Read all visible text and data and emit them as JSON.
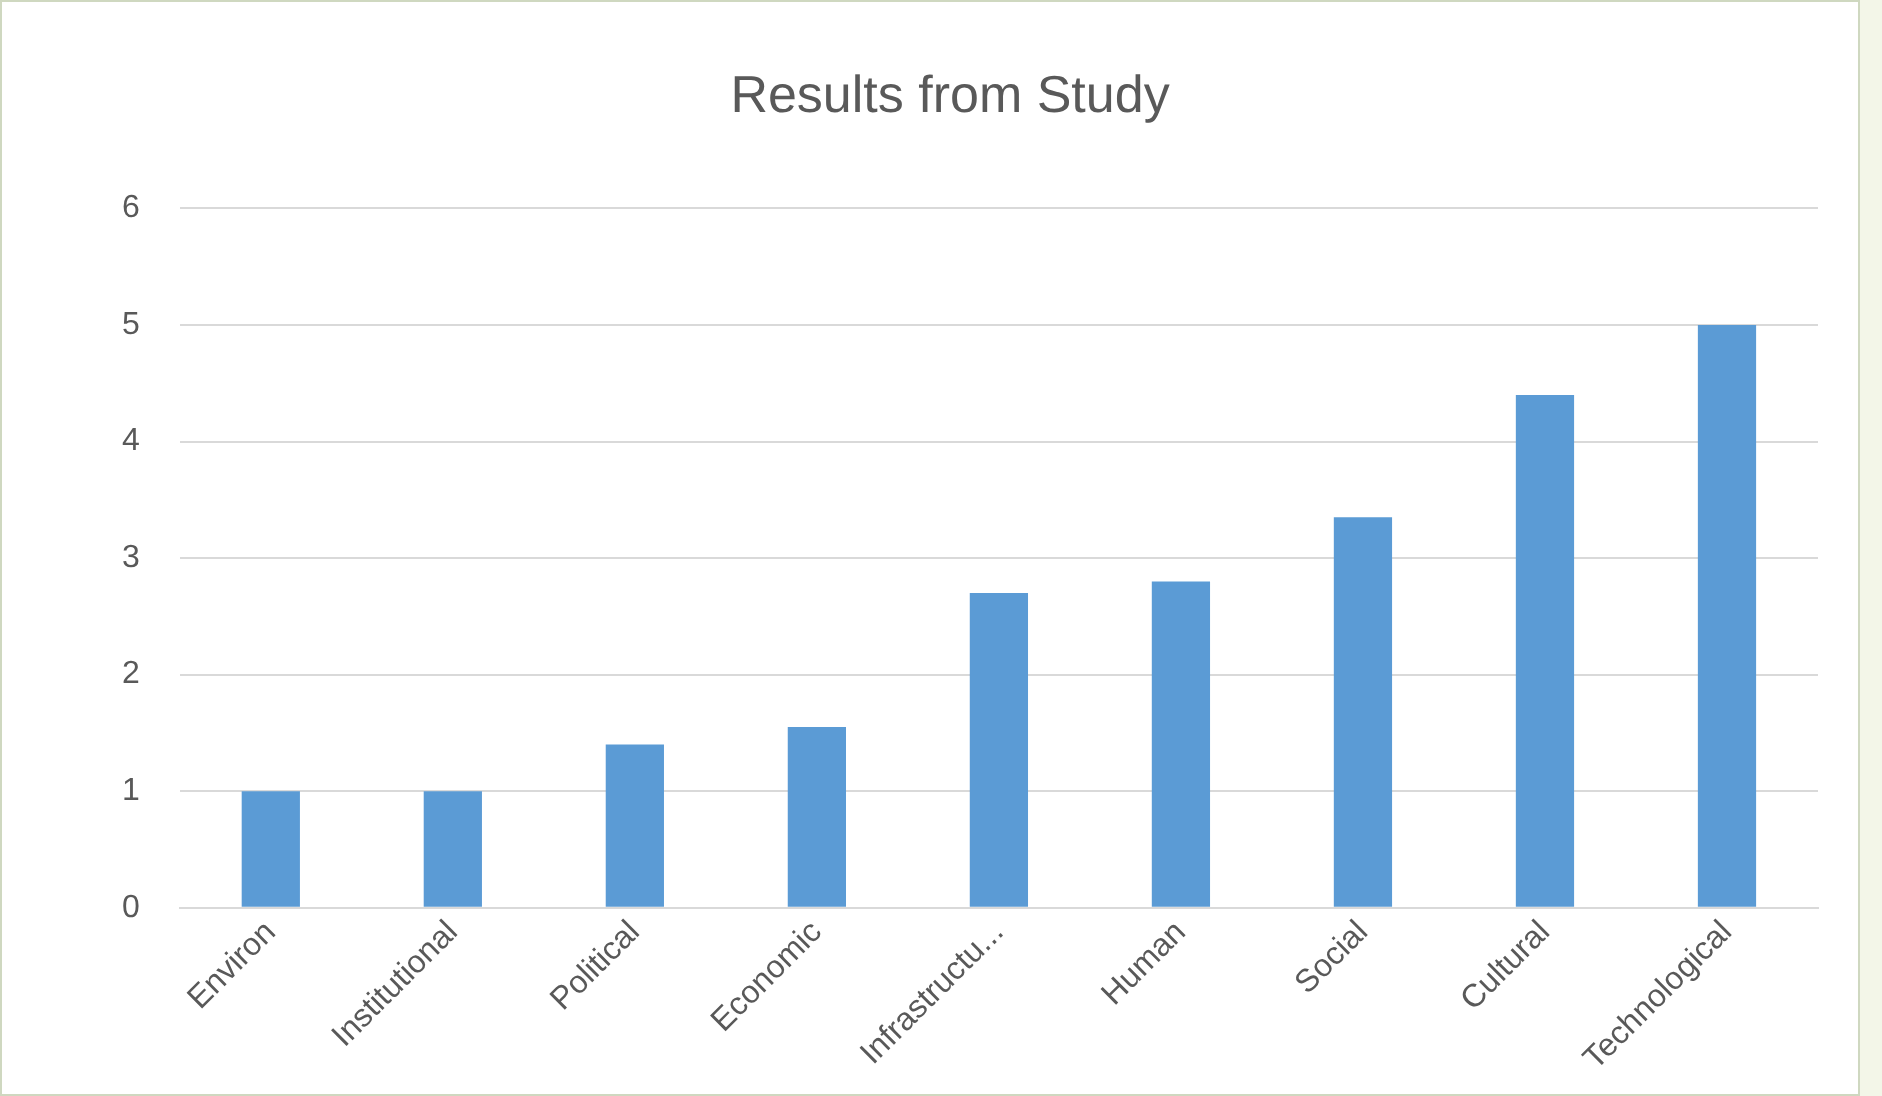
{
  "chart_data": {
    "type": "bar",
    "title": "Results from Study",
    "categories": [
      "Environ",
      "Institutional",
      "Political",
      "Economic",
      "Infrastructu...",
      "Human",
      "Social",
      "Cultural",
      "Technological"
    ],
    "values": [
      1,
      1,
      1.4,
      1.55,
      2.7,
      2.8,
      3.35,
      4.4,
      5
    ],
    "color": "#5b9bd5",
    "ylim": [
      0,
      6
    ],
    "yticks": [
      0,
      1,
      2,
      3,
      4,
      5,
      6
    ],
    "grid": "y",
    "legend": false
  }
}
